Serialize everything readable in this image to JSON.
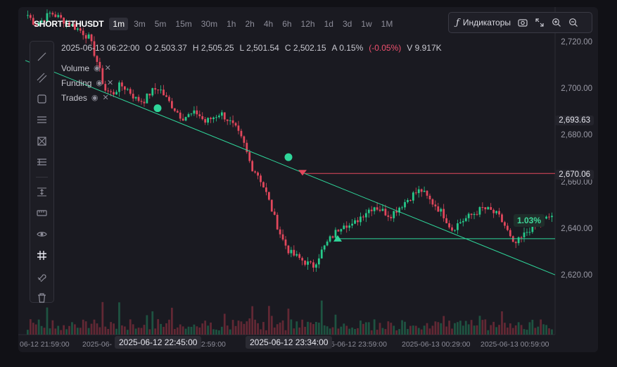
{
  "symbol": "SHORT ETHUSDT",
  "timeframes": [
    "1m",
    "3m",
    "5m",
    "15m",
    "30m",
    "1h",
    "2h",
    "4h",
    "6h",
    "12h",
    "1d",
    "3d",
    "1w",
    "1M"
  ],
  "active_timeframe": "1m",
  "toolbar": {
    "indicators_label": "Индикаторы"
  },
  "ohlc": {
    "time": "2025-06-13 06:22:00",
    "open": "O 2,503.37",
    "high": "H 2,505.25",
    "low": "L 2,501.54",
    "close": "C 2,502.15",
    "amplitude": "A 0.15%",
    "change": "(-0.05%)",
    "volume": "V 9.917K"
  },
  "legend": [
    {
      "name": "Volume"
    },
    {
      "name": "Funding"
    },
    {
      "name": "Trades"
    }
  ],
  "price_tags": {
    "upper": "2,693.63",
    "lower": "2,670.06"
  },
  "badge": "1.03%",
  "x_highlight": [
    "2025-06-12 22:45:00",
    "2025-06-12 23:34:00"
  ],
  "colors": {
    "up": "#26c98a",
    "down": "#e2475c",
    "trend": "#2fd69a",
    "bg": "#1a1a21"
  },
  "chart_data": {
    "type": "candlestick",
    "ylim": [
      2613,
      2733
    ],
    "y_ticks": [
      "2,720.00",
      "2,700.00",
      "2,680.00",
      "2,660.00",
      "2,640.00",
      "2,620.00"
    ],
    "y_tick_values": [
      2720,
      2700,
      2680,
      2660,
      2640,
      2620
    ],
    "x_ticks": [
      "06-12 21:59:00",
      "2025-06-",
      "22:59:00",
      "2025-06-1",
      "5-06-12 23:59:00",
      "2025-06-13 00:29:00",
      "2025-06-13 00:59:00"
    ],
    "close_path": [
      2732,
      2728,
      2730,
      2733,
      2731,
      2729,
      2727,
      2725,
      2722,
      2712,
      2700,
      2698,
      2702,
      2700,
      2696,
      2695,
      2699,
      2701,
      2696,
      2692,
      2688,
      2689,
      2690,
      2686,
      2688,
      2690,
      2687,
      2683,
      2677,
      2667,
      2663,
      2655,
      2645,
      2636,
      2630,
      2628,
      2626,
      2624,
      2630,
      2635,
      2639,
      2643,
      2641,
      2645,
      2648,
      2650,
      2648,
      2646,
      2649,
      2652,
      2655,
      2657,
      2653,
      2650,
      2646,
      2640,
      2643,
      2645,
      2647,
      2649,
      2648,
      2646,
      2641,
      2633,
      2636,
      2640,
      2642,
      2644,
      2646
    ],
    "trendline": {
      "from": [
        2712.5,
        0
      ],
      "to": [
        2620.5,
        1
      ]
    },
    "markers": [
      2692,
      2671
    ],
    "hlines": [
      {
        "value": 2664,
        "color": "#e2475c"
      },
      {
        "value": 2636,
        "color": "#2fd69a"
      }
    ]
  }
}
